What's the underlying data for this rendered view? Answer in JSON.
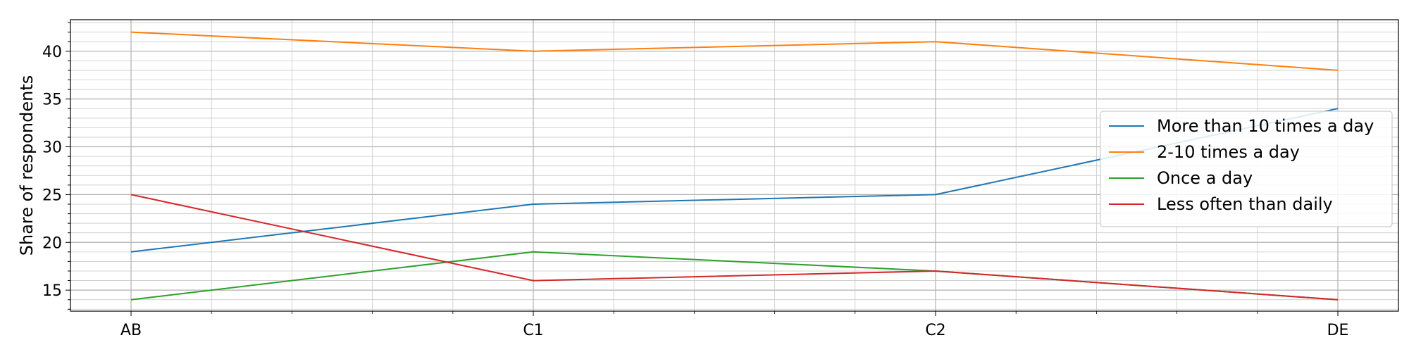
{
  "chart_data": {
    "type": "line",
    "title": "",
    "xlabel": "",
    "ylabel": "Share of respondents",
    "categories": [
      "AB",
      "C1",
      "C2",
      "DE"
    ],
    "ylim": [
      12.8,
      43.3
    ],
    "y_major_ticks": [
      15,
      20,
      25,
      30,
      35,
      40
    ],
    "y_minor_step": 1,
    "x_minor_subdivisions": 5,
    "grid": true,
    "legend_position": "right",
    "series": [
      {
        "name": "More than 10 times a day",
        "color": "#1f77b4",
        "values": [
          19,
          24,
          25,
          34
        ]
      },
      {
        "name": "2-10 times a day",
        "color": "#ff7f0e",
        "values": [
          42,
          40,
          41,
          38
        ]
      },
      {
        "name": "Once a day",
        "color": "#2ca02c",
        "values": [
          14,
          19,
          17,
          14
        ]
      },
      {
        "name": "Less often than daily",
        "color": "#d62728",
        "values": [
          25,
          16,
          17,
          14
        ]
      }
    ]
  }
}
